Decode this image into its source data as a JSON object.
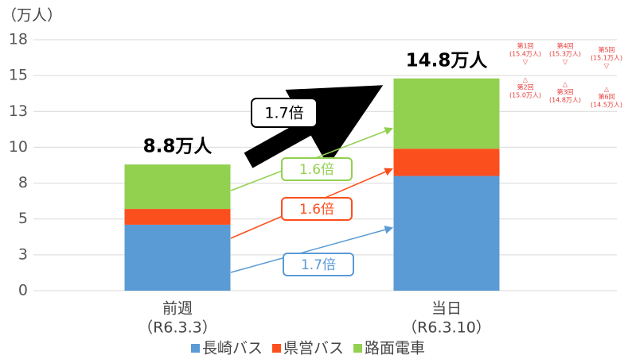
{
  "chart_data": {
    "type": "stacked_bar",
    "y_axis_label": "（万人）",
    "categories": [
      [
        "前週",
        "（R6.3.3）"
      ],
      [
        "当日",
        "（R6.3.10）"
      ]
    ],
    "series": [
      {
        "name": "長崎バス",
        "color": "#5b9bd5",
        "values": [
          4.6,
          8.0
        ]
      },
      {
        "name": "県営バス",
        "color": "#fc4f1e",
        "values": [
          1.1,
          1.9
        ]
      },
      {
        "name": "路面電車",
        "color": "#92d050",
        "values": [
          3.1,
          4.9
        ]
      }
    ],
    "totals": [
      "8.8万人",
      "14.8万人"
    ],
    "ylim": [
      0,
      17.5
    ],
    "yticks": [
      0,
      {
        "value": 2.5,
        "label": "3"
      },
      5,
      {
        "value": 7.5,
        "label": "8"
      },
      10,
      {
        "value": 12.5,
        "label": "13"
      },
      15,
      {
        "value": 17.5,
        "label": "18"
      }
    ],
    "grid": true,
    "legend": "bottom",
    "ratio_total": "1.7倍",
    "ratios": [
      "1.7倍",
      "1.6倍",
      "1.6倍"
    ],
    "notes": [
      {
        "label": "第1回",
        "detail": "(15.4万人)",
        "marker": "▽"
      },
      {
        "label": "第4回",
        "detail": "(15.3万人)",
        "marker": "▽"
      },
      {
        "label": "第5回",
        "detail": "(15.1万人)",
        "marker": "▽"
      },
      {
        "label": "第2回",
        "detail": "(15.0万人)",
        "marker": "△"
      },
      {
        "label": "第3回",
        "detail": "(14.8万人)",
        "marker": "△"
      },
      {
        "label": "第6回",
        "detail": "(14.5万人)",
        "marker": "△"
      }
    ]
  }
}
